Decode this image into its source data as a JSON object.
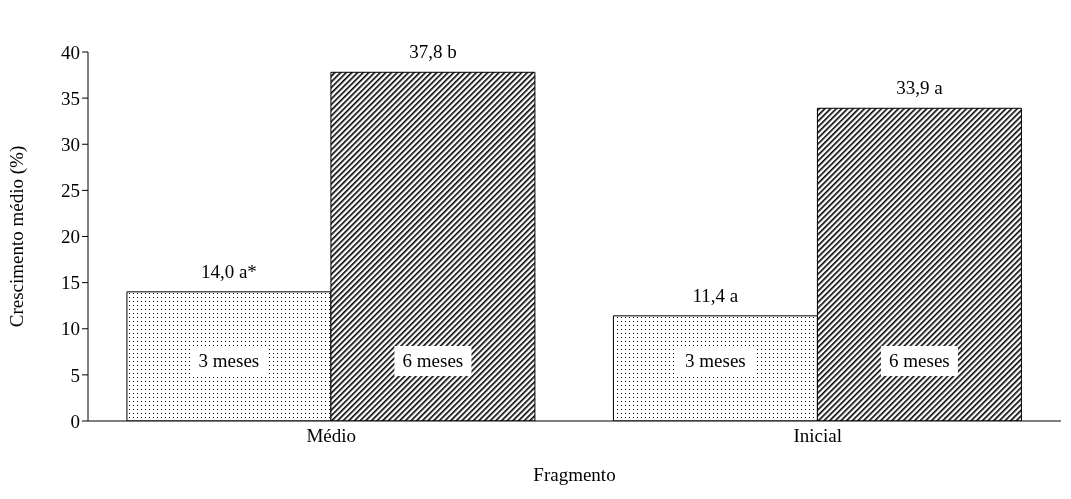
{
  "chart_data": {
    "type": "bar",
    "xlabel": "Fragmento",
    "ylabel": "Crescimento médio (%)",
    "categories": [
      "Médio",
      "Inicial"
    ],
    "series": [
      {
        "name": "3 meses",
        "color": "#000000",
        "values": [
          14.0,
          11.4
        ],
        "value_labels": [
          "14,0 a*",
          "11,4 a"
        ]
      },
      {
        "name": "6 meses",
        "color": "#000000",
        "values": [
          37.8,
          33.9
        ],
        "value_labels": [
          "37,8 b",
          "33,9 a"
        ]
      }
    ],
    "ylim": [
      0,
      40
    ],
    "yticks": [
      0,
      5,
      10,
      15,
      20,
      25,
      30,
      35,
      40
    ],
    "grid": false,
    "legend": false
  }
}
